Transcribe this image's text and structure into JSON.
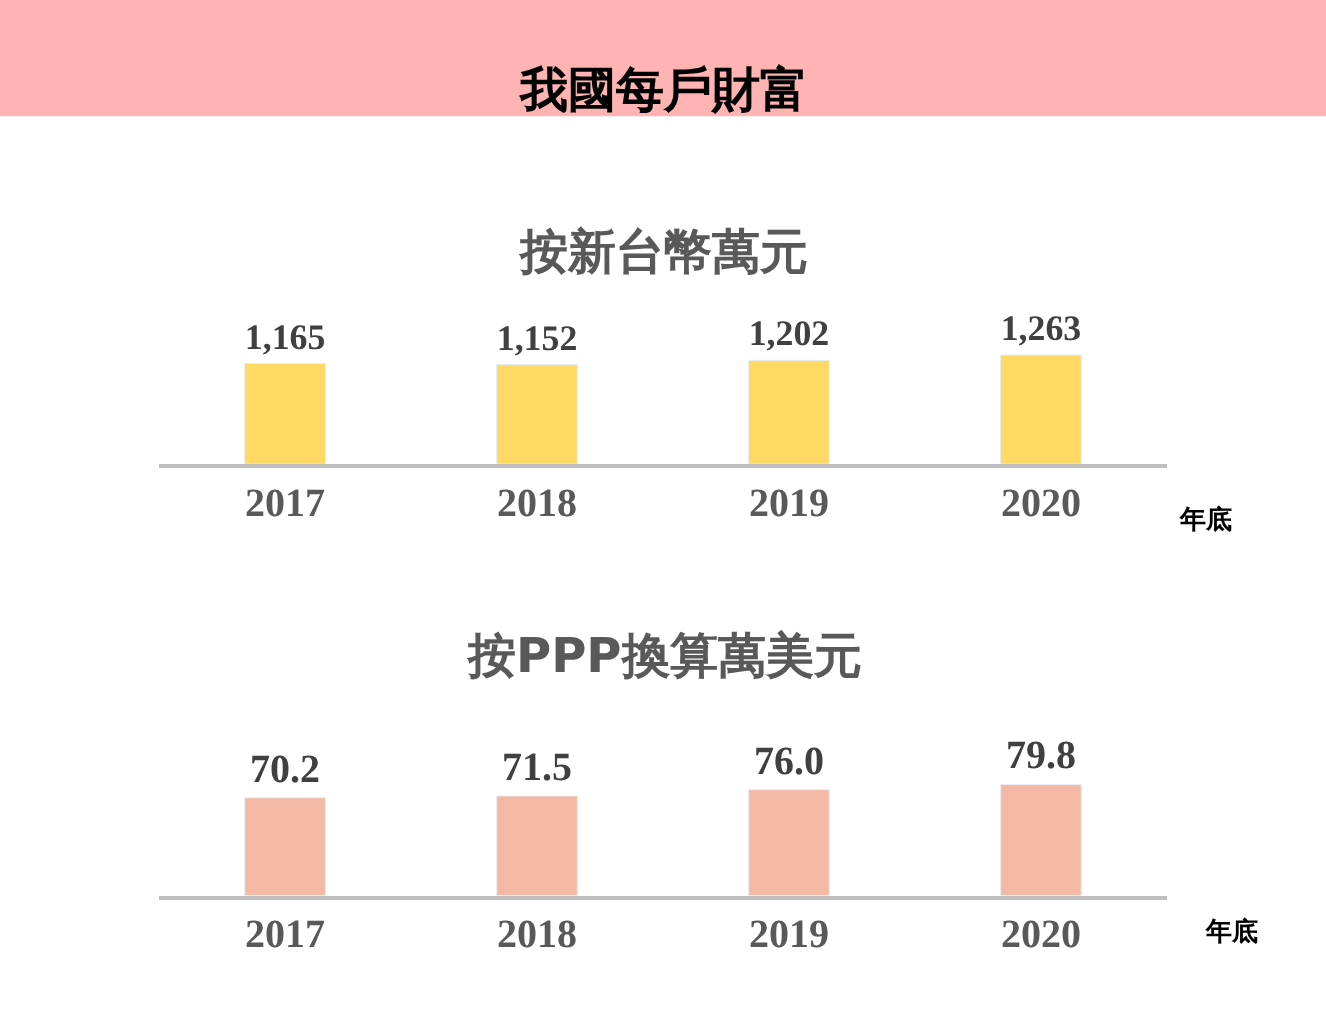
{
  "chart_data": [
    {
      "type": "bar",
      "title": "我國每戶財富",
      "subtitle": "按新台幣萬元",
      "xlabel": "年底",
      "categories": [
        "2017",
        "2018",
        "2019",
        "2020"
      ],
      "values": [
        1165,
        1152,
        1202,
        1263
      ],
      "value_labels": [
        "1,165",
        "1,152",
        "1,202",
        "1,263"
      ],
      "color": "#ffd966"
    },
    {
      "type": "bar",
      "title": "按PPP換算萬美元",
      "xlabel": "年底",
      "categories": [
        "2017",
        "2018",
        "2019",
        "2020"
      ],
      "values": [
        70.2,
        71.5,
        76.0,
        79.8
      ],
      "value_labels": [
        "70.2",
        "71.5",
        "76.0",
        "79.8"
      ],
      "color": "#f4b9a4"
    }
  ]
}
